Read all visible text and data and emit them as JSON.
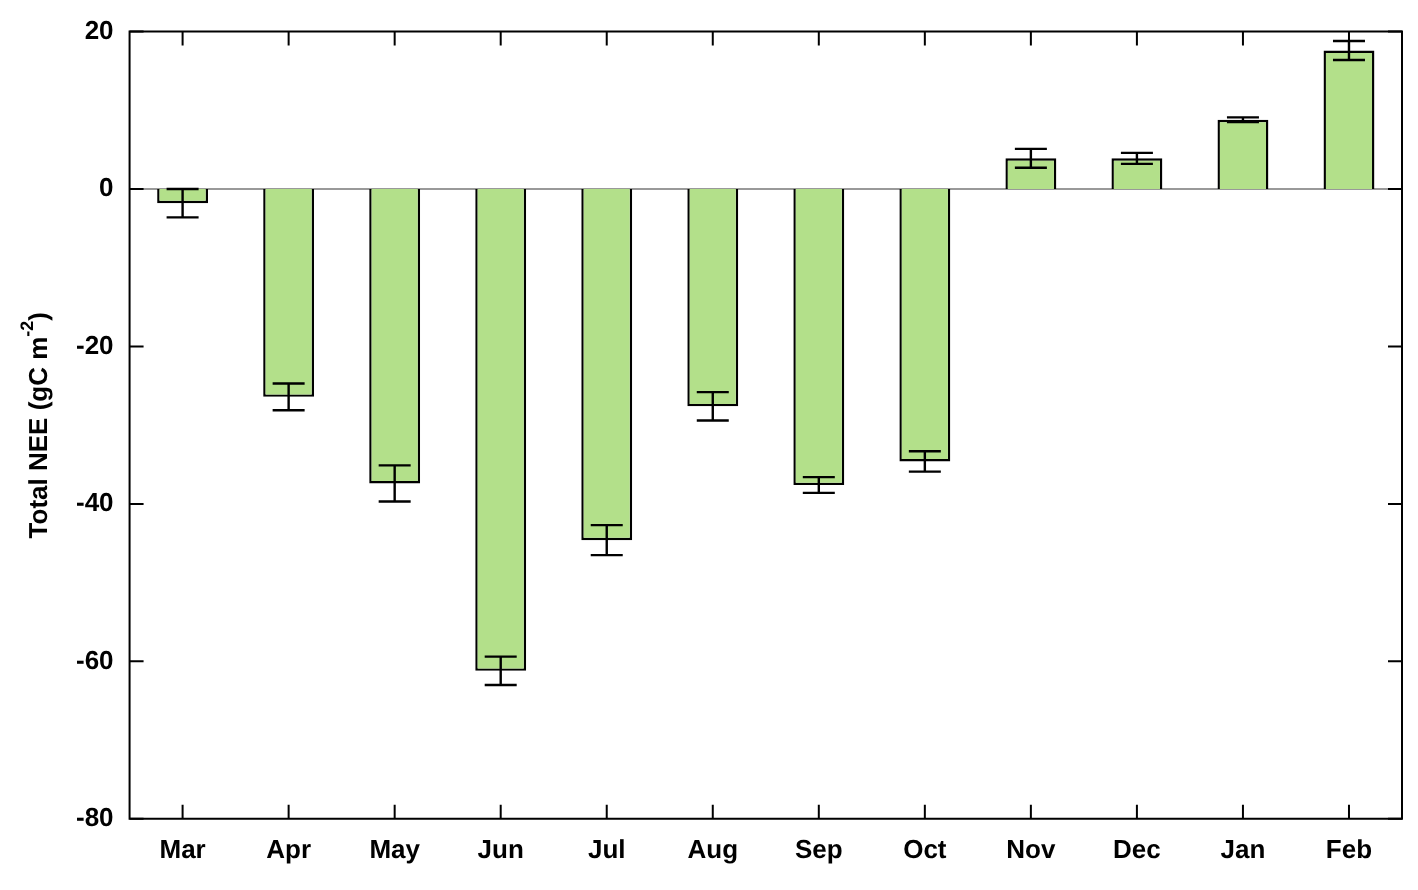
{
  "chart_data": {
    "type": "bar",
    "ylabel": "Total NEE (gC m$^{-2}$)",
    "categories": [
      "Mar",
      "Apr",
      "May",
      "Jun",
      "Jul",
      "Aug",
      "Sep",
      "Oct",
      "Nov",
      "Dec",
      "Jan",
      "Feb"
    ],
    "values": [
      -1.8,
      -26.4,
      -37.4,
      -61.2,
      -44.6,
      -27.6,
      -37.6,
      -34.6,
      3.9,
      3.9,
      8.8,
      17.6
    ],
    "errors": [
      1.8,
      1.7,
      2.3,
      1.8,
      1.9,
      1.8,
      1.0,
      1.3,
      1.2,
      0.7,
      0.3,
      1.2
    ],
    "color": "#b3e08a",
    "ylim": [
      -80,
      20
    ],
    "yticks": [
      -80,
      -60,
      -40,
      -20,
      0,
      20
    ],
    "ref_lines": [
      {
        "axis": "y",
        "value": 0,
        "color": "#999999"
      }
    ],
    "grid": false,
    "legend": false
  }
}
